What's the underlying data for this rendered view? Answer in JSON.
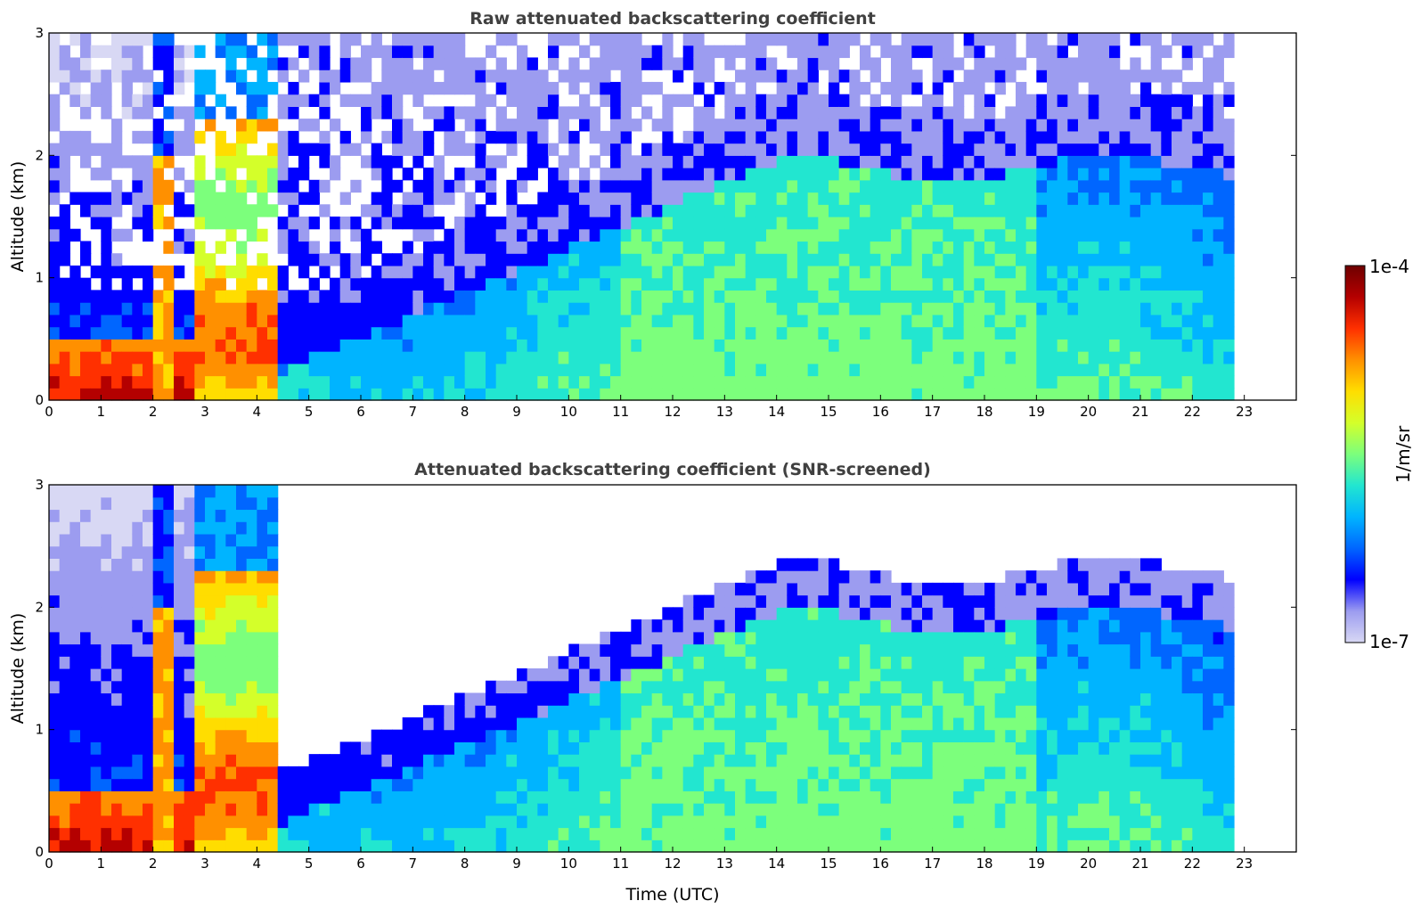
{
  "chart_data": [
    {
      "type": "heatmap",
      "title": "Raw attenuated backscattering coefficient",
      "xlabel": "",
      "ylabel": "Altitude (km)",
      "xlim": [
        0,
        24
      ],
      "ylim": [
        0,
        3
      ],
      "xticks": [
        "0",
        "1",
        "2",
        "3",
        "4",
        "5",
        "6",
        "7",
        "8",
        "9",
        "10",
        "11",
        "12",
        "13",
        "14",
        "15",
        "16",
        "17",
        "18",
        "19",
        "20",
        "21",
        "22",
        "23"
      ],
      "yticks": [
        "0",
        "1",
        "2",
        "3"
      ],
      "data_extent_x": [
        0,
        22.8
      ],
      "grid": false
    },
    {
      "type": "heatmap",
      "title": "Attenuated backscattering coefficient (SNR-screened)",
      "xlabel": "Time (UTC)",
      "ylabel": "Altitude (km)",
      "xlim": [
        0,
        24
      ],
      "ylim": [
        0,
        3
      ],
      "xticks": [
        "0",
        "1",
        "2",
        "3",
        "4",
        "5",
        "6",
        "7",
        "8",
        "9",
        "10",
        "11",
        "12",
        "13",
        "14",
        "15",
        "16",
        "17",
        "18",
        "19",
        "20",
        "21",
        "22",
        "23"
      ],
      "yticks": [
        "0",
        "1",
        "2",
        "3"
      ],
      "data_extent_x": [
        0,
        22.8
      ],
      "grid": false
    }
  ],
  "colorbar": {
    "min_label": "1e-7",
    "max_label": "1e-4",
    "unit": "1/m/sr",
    "scale": "log",
    "colors": [
      "#d8d8f4",
      "#9c9cf0",
      "#0000ff",
      "#0066ff",
      "#00b4ff",
      "#22e6d0",
      "#7cff7c",
      "#d4ff2a",
      "#ffdd00",
      "#ff9000",
      "#ff3000",
      "#b40000",
      "#6e0000"
    ]
  }
}
